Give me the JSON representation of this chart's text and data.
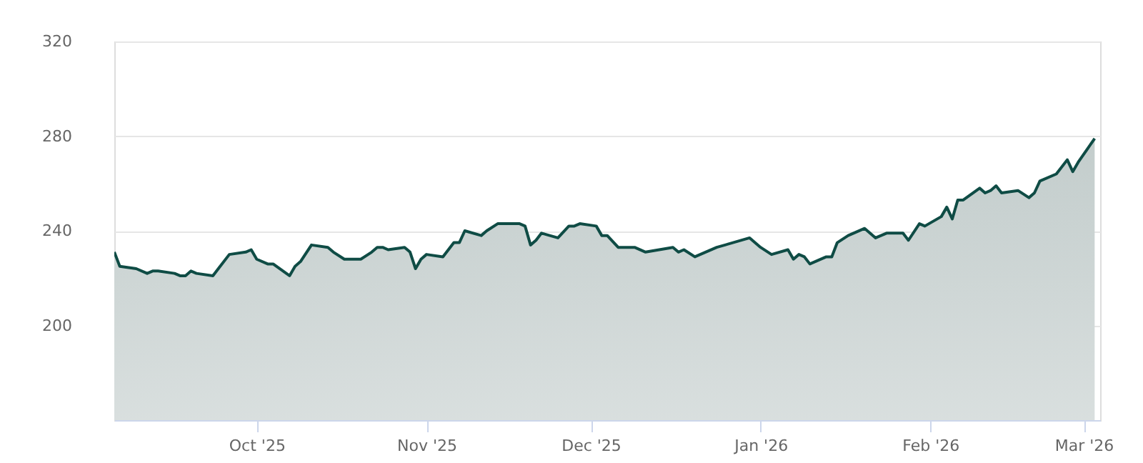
{
  "chart_data": {
    "type": "area",
    "x": [
      "2025-09-05",
      "2025-09-06",
      "2025-09-09",
      "2025-09-11",
      "2025-09-12",
      "2025-09-13",
      "2025-09-16",
      "2025-09-17",
      "2025-09-18",
      "2025-09-19",
      "2025-09-20",
      "2025-09-23",
      "2025-09-24",
      "2025-09-26",
      "2025-09-29",
      "2025-09-30",
      "2025-10-01",
      "2025-10-03",
      "2025-10-04",
      "2025-10-07",
      "2025-10-08",
      "2025-10-09",
      "2025-10-11",
      "2025-10-14",
      "2025-10-15",
      "2025-10-17",
      "2025-10-20",
      "2025-10-22",
      "2025-10-23",
      "2025-10-24",
      "2025-10-25",
      "2025-10-28",
      "2025-10-29",
      "2025-10-30",
      "2025-10-31",
      "2025-11-01",
      "2025-11-04",
      "2025-11-06",
      "2025-11-07",
      "2025-11-08",
      "2025-11-11",
      "2025-11-12",
      "2025-11-14",
      "2025-11-15",
      "2025-11-18",
      "2025-11-19",
      "2025-11-20",
      "2025-11-21",
      "2025-11-22",
      "2025-11-25",
      "2025-11-27",
      "2025-11-28",
      "2025-11-29",
      "2025-12-02",
      "2025-12-03",
      "2025-12-04",
      "2025-12-06",
      "2025-12-09",
      "2025-12-11",
      "2025-12-16",
      "2025-12-17",
      "2025-12-18",
      "2025-12-20",
      "2025-12-24",
      "2025-12-30",
      "2026-01-01",
      "2026-01-03",
      "2026-01-06",
      "2026-01-07",
      "2026-01-08",
      "2026-01-09",
      "2026-01-10",
      "2026-01-13",
      "2026-01-14",
      "2026-01-15",
      "2026-01-17",
      "2026-01-20",
      "2026-01-22",
      "2026-01-24",
      "2026-01-27",
      "2026-01-28",
      "2026-01-30",
      "2026-01-31",
      "2026-02-03",
      "2026-02-04",
      "2026-02-05",
      "2026-02-06",
      "2026-02-07",
      "2026-02-10",
      "2026-02-11",
      "2026-02-12",
      "2026-02-13",
      "2026-02-14",
      "2026-02-17",
      "2026-02-19",
      "2026-02-20",
      "2026-02-21",
      "2026-02-24",
      "2026-02-26",
      "2026-02-27",
      "2026-02-28",
      "2026-03-03"
    ],
    "series": [
      {
        "color": "#0f4c45",
        "values": [
          231,
          225,
          224,
          222,
          223,
          223,
          222,
          221,
          221,
          223,
          222,
          221,
          224,
          230,
          231,
          232,
          228,
          226,
          226,
          221,
          225,
          227,
          234,
          233,
          231,
          228,
          228,
          231,
          233,
          233,
          232,
          233,
          231,
          224,
          228,
          230,
          229,
          235,
          235,
          240,
          238,
          240,
          243,
          243,
          243,
          242,
          234,
          236,
          239,
          237,
          242,
          242,
          243,
          242,
          238,
          238,
          233,
          233,
          231,
          233,
          231,
          232,
          229,
          233,
          237,
          233,
          230,
          232,
          228,
          230,
          229,
          226,
          229,
          229,
          235,
          238,
          241,
          237,
          239,
          239,
          236,
          243,
          242,
          246,
          250,
          245,
          253,
          253,
          258,
          256,
          257,
          259,
          256,
          257,
          254,
          256,
          261,
          264,
          270,
          265,
          269,
          279
        ]
      }
    ],
    "xlim": [
      "2025-09-05",
      "2026-03-04"
    ],
    "xticks": [
      {
        "value": "2025-10-01",
        "label": "Oct '25"
      },
      {
        "value": "2025-11-01",
        "label": "Nov '25"
      },
      {
        "value": "2025-12-01",
        "label": "Dec '25"
      },
      {
        "value": "2026-01-01",
        "label": "Jan '26"
      },
      {
        "value": "2026-02-01",
        "label": "Feb '26"
      },
      {
        "value": "2026-03-01",
        "label": "Mar '26"
      }
    ],
    "ylim": [
      160,
      320
    ],
    "yticks": [
      200,
      240,
      280,
      320
    ],
    "grid": "y"
  }
}
